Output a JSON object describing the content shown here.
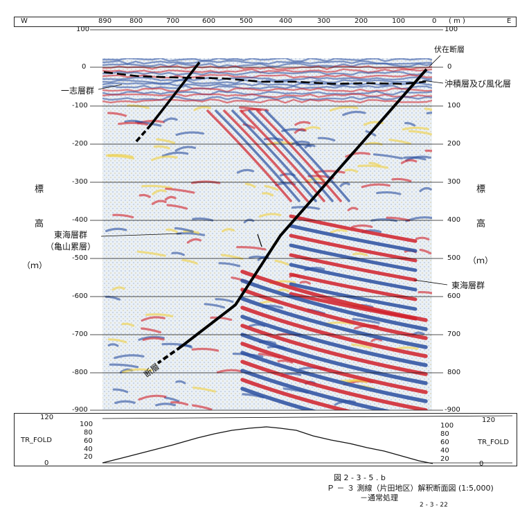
{
  "top_ruler": {
    "west_label": "W",
    "east_label": "E",
    "unit": "( m )",
    "distances": [
      "890",
      "800",
      "700",
      "600",
      "500",
      "400",
      "300",
      "200",
      "100",
      "0"
    ]
  },
  "elevation_ticks": [
    "100",
    "0",
    "-100",
    "-200",
    "-300",
    "-400",
    "-500",
    "-600",
    "-700",
    "-800",
    "-900"
  ],
  "right_elevation_ticks": [
    "100",
    "0",
    "100",
    "200",
    "300",
    "400",
    "500",
    "600",
    "700",
    "800",
    "-900"
  ],
  "axis_title": {
    "char1": "標",
    "char2": "高",
    "unit": "（ｍ）"
  },
  "annotations": {
    "hidden_fault": "伏在断層",
    "alluvium": "沖積層及び風化層",
    "isshi_group": "一志層群",
    "tokai_group_left": "東海層群",
    "kameyama_formation": "（亀山累層）",
    "tokai_group_right": "東海層群",
    "fault": "断層"
  },
  "fold_panel": {
    "label": "TR_FOLD",
    "ticks": [
      "120",
      "100",
      "80",
      "60",
      "40",
      "20",
      "0"
    ]
  },
  "caption": {
    "figure_number": "図 2 - 3 - 5 . b",
    "title": "Ｐ － ３ 測線（片田地区）解釈断面図 (1:5,000)",
    "subtitle": "－通常処理",
    "page": "2 - 3 - 22"
  },
  "colors": {
    "red": "#d0202a",
    "blue": "#2a4fa0",
    "yellow": "#f0d040",
    "fault_line": "#000000"
  }
}
